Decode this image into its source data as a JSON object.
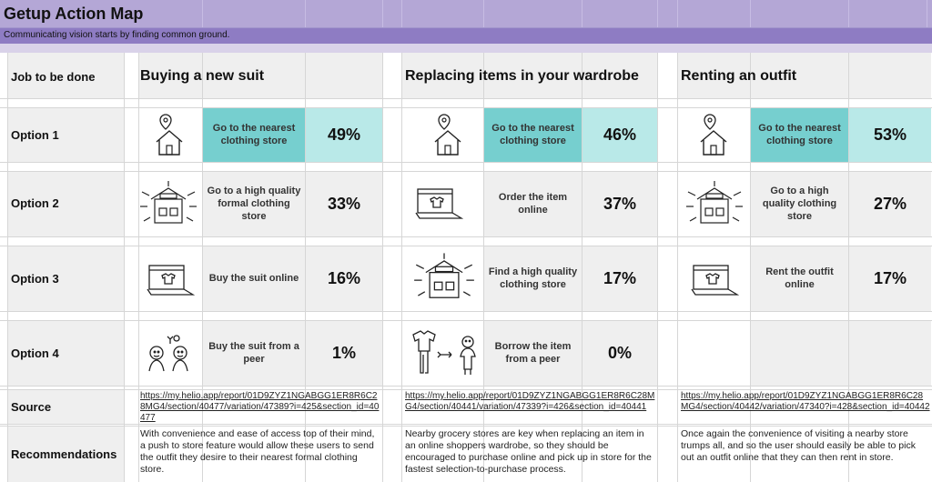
{
  "header": {
    "title": "Getup Action Map",
    "subtitle": "Communicating vision starts by finding common ground."
  },
  "rows": {
    "job": "Job to be done",
    "option1": "Option 1",
    "option2": "Option 2",
    "option3": "Option 3",
    "option4": "Option 4",
    "source": "Source",
    "recommendations": "Recommendations"
  },
  "columns": [
    {
      "title": "Buying a new suit",
      "options": [
        {
          "text": "Go to the nearest clothing store",
          "pct": "49%",
          "icon": "house-pin-icon"
        },
        {
          "text": "Go to a high quality formal clothing store",
          "pct": "33%",
          "icon": "store-icon"
        },
        {
          "text": "Buy the suit online",
          "pct": "16%",
          "icon": "laptop-shirt-icon"
        },
        {
          "text": "Buy the suit from a peer",
          "pct": "1%",
          "icon": "two-people-icon"
        }
      ],
      "source": "https://my.helio.app/report/01D9ZYZ1NGABGG1ER8R6C28MG4/section/40477/variation/47389?i=425&section_id=40477",
      "recommendation": "With convenience and ease of access top of their mind, a push to store feature would allow these users to send the outfit they desire to their nearest formal clothing store."
    },
    {
      "title": "Replacing items in your wardrobe",
      "options": [
        {
          "text": "Go to the nearest clothing store",
          "pct": "46%",
          "icon": "house-pin-icon"
        },
        {
          "text": "Order the item online",
          "pct": "37%",
          "icon": "laptop-shirt-icon"
        },
        {
          "text": "Find a high quality clothing store",
          "pct": "17%",
          "icon": "store-icon"
        },
        {
          "text": "Borrow the item from a peer",
          "pct": "0%",
          "icon": "shirt-person-icon"
        }
      ],
      "source": "https://my.helio.app/report/01D9ZYZ1NGABGG1ER8R6C28MG4/section/40441/variation/47339?i=426&section_id=40441",
      "recommendation": "Nearby grocery stores are key when replacing an item in an online shoppers wardrobe, so they should be encouraged to purchase online and pick up in store for the fastest selection-to-purchase process."
    },
    {
      "title": "Renting an outfit",
      "options": [
        {
          "text": "Go to the nearest clothing store",
          "pct": "53%",
          "icon": "house-pin-icon"
        },
        {
          "text": "Go to a high quality clothing store",
          "pct": "27%",
          "icon": "store-icon"
        },
        {
          "text": "Rent the outfit online",
          "pct": "17%",
          "icon": "laptop-shirt-icon"
        }
      ],
      "source": "https://my.helio.app/report/01D9ZYZ1NGABGG1ER8R6C28MG4/section/40442/variation/47340?i=428&section_id=40442",
      "recommendation": "Once again the convenience of visiting a nearby store trumps all, and so the user should easily be able to pick out an outfit online that they can then rent in store."
    }
  ]
}
